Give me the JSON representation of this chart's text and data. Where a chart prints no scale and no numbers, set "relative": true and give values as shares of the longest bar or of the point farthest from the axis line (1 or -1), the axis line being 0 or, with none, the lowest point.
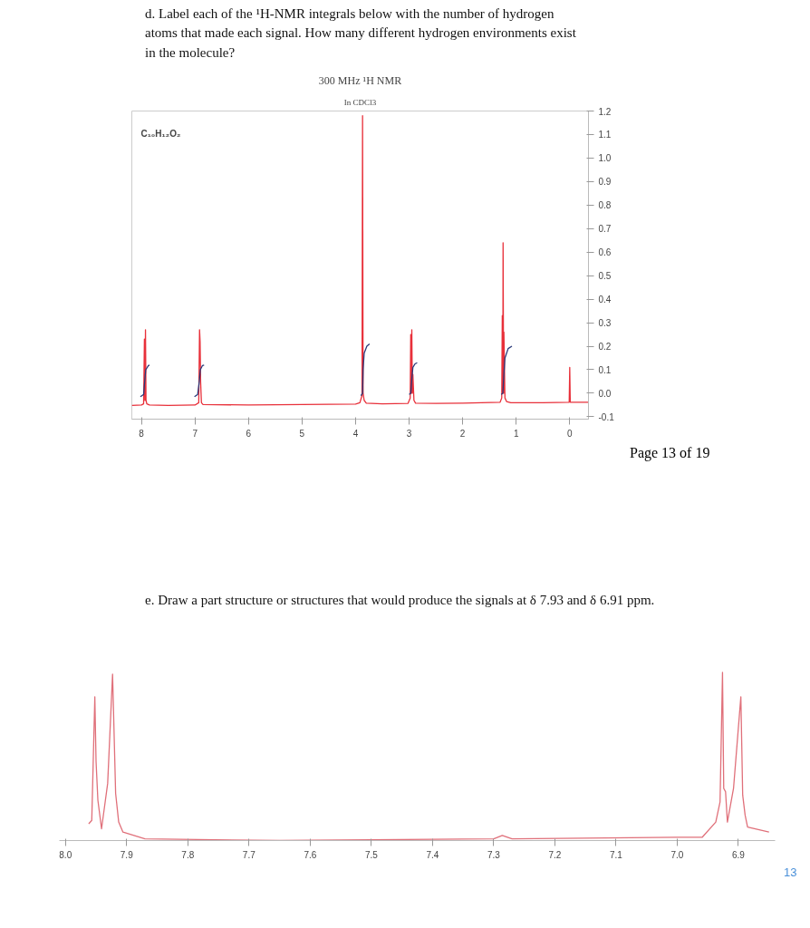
{
  "chart_data": [
    {
      "type": "line",
      "title": "300 MHz ¹H NMR",
      "subtitle": "In CDCl3",
      "annotations": [
        "d. Label each of the ¹H-NMR integrals below with the number of hydrogen atoms that made each signal. How many different hydrogen environments exist in the molecule?",
        "C₁₀H₁₂O₂",
        "Page 13 of 19"
      ],
      "xlim": [
        8.18,
        -0.35
      ],
      "xticks": [
        8,
        7,
        6,
        5,
        4,
        3,
        2,
        1,
        0
      ],
      "ylim": [
        -0.11,
        1.2
      ],
      "yticks": [
        {
          "value": -0.1,
          "label": "-0.1"
        },
        {
          "value": 0,
          "label": "0.0"
        },
        0.1,
        0.2,
        0.3,
        0.4,
        0.5,
        0.6,
        0.7,
        0.8,
        0.9,
        {
          "value": 1,
          "label": "1.0"
        },
        1.1,
        1.2
      ],
      "series": [
        {
          "color": "#e8303a",
          "x": [
            8.18,
            8.0,
            7.96,
            7.945,
            7.935,
            7.925,
            7.915,
            7.9,
            7.85,
            7.5,
            7.0,
            6.93,
            6.915,
            6.905,
            6.895,
            6.88,
            6.85,
            6.0,
            5.0,
            4.0,
            3.92,
            3.88,
            3.87,
            3.86,
            3.84,
            3.8,
            3.5,
            3.02,
            2.98,
            2.97,
            2.96,
            2.95,
            2.94,
            2.93,
            2.91,
            2.88,
            2.5,
            2.0,
            1.3,
            1.27,
            1.26,
            1.25,
            1.245,
            1.235,
            1.23,
            1.21,
            1.18,
            1.1,
            0.5,
            0.01,
            0.0,
            -0.01,
            -0.35
          ],
          "values": [
            -0.052,
            -0.05,
            -0.045,
            0.23,
            -0.03,
            0.27,
            -0.03,
            -0.045,
            -0.05,
            -0.052,
            -0.05,
            -0.04,
            0.27,
            0.22,
            0.05,
            -0.04,
            -0.048,
            -0.05,
            -0.048,
            -0.046,
            -0.04,
            -0.01,
            1.18,
            0.0,
            -0.03,
            -0.042,
            -0.045,
            -0.043,
            -0.02,
            0.25,
            0.0,
            0.27,
            0.0,
            0.08,
            -0.03,
            -0.042,
            -0.043,
            -0.042,
            -0.038,
            -0.02,
            0.33,
            0.0,
            0.64,
            0.0,
            0.26,
            -0.02,
            -0.035,
            -0.04,
            -0.04,
            -0.038,
            0.11,
            -0.038,
            -0.038
          ]
        },
        {
          "color": "#2a3a7a",
          "x": [
            8.02,
            7.96,
            7.94,
            7.92,
            7.87,
            7.85,
            null,
            7.01,
            6.95,
            6.92,
            6.9,
            6.86,
            6.83,
            null,
            3.9,
            3.87,
            3.86,
            3.84,
            3.79,
            3.74,
            null,
            3.0,
            2.97,
            2.95,
            2.93,
            2.89,
            2.85,
            null,
            1.28,
            1.25,
            1.23,
            1.21,
            1.15,
            1.08
          ],
          "values": [
            -0.015,
            -0.005,
            0.05,
            0.1,
            0.118,
            0.12,
            null,
            -0.015,
            -0.005,
            0.05,
            0.1,
            0.118,
            0.12,
            null,
            -0.01,
            0.0,
            0.1,
            0.17,
            0.2,
            0.21,
            null,
            -0.005,
            0.0,
            0.06,
            0.11,
            0.125,
            0.13,
            null,
            -0.005,
            0.0,
            0.08,
            0.15,
            0.19,
            0.2
          ]
        }
      ]
    },
    {
      "type": "line",
      "relative": true,
      "annotations": [
        "e. Draw a part structure or structures that would produce the signals at δ 7.93 and δ 6.91 ppm.",
        "13"
      ],
      "xlim": [
        8.01,
        6.84
      ],
      "xticks": [
        {
          "value": 8.0,
          "label": "8.0"
        },
        7.9,
        7.8,
        7.7,
        7.6,
        7.5,
        7.4,
        7.3,
        7.2,
        7.1,
        {
          "value": 7.0,
          "label": "7.0"
        },
        6.9
      ],
      "series": [
        {
          "color": "#e0707a",
          "x": [
            7.962,
            7.957,
            7.952,
            7.95,
            7.947,
            7.941,
            7.931,
            7.923,
            7.918,
            7.913,
            7.906,
            7.87,
            7.65,
            7.3,
            7.286,
            7.27,
            7.0,
            6.959,
            6.937,
            6.93,
            6.926,
            6.924,
            6.921,
            6.918,
            6.908,
            6.896,
            6.893,
            6.889,
            6.885,
            6.85
          ],
          "values": [
            0.1,
            0.12,
            0.855,
            0.47,
            0.24,
            0.07,
            0.34,
            0.99,
            0.28,
            0.11,
            0.05,
            0.01,
            0.0,
            0.01,
            0.03,
            0.01,
            0.02,
            0.02,
            0.11,
            0.23,
            1.0,
            0.31,
            0.29,
            0.11,
            0.31,
            0.855,
            0.27,
            0.15,
            0.08,
            0.05
          ]
        }
      ]
    }
  ]
}
